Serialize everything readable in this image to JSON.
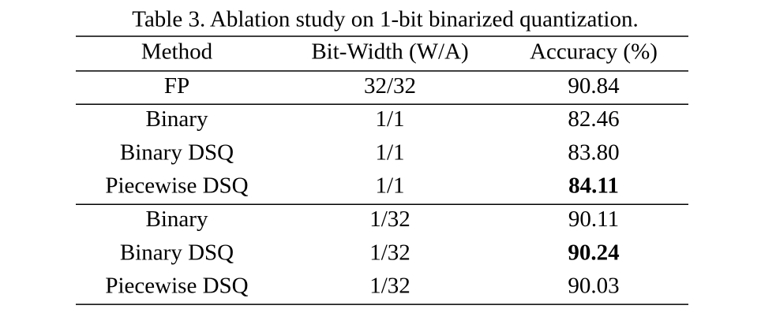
{
  "caption": "Table 3. Ablation study on 1-bit binarized quantization.",
  "table": {
    "header": [
      "Method",
      "Bit-Width (W/A)",
      "Accuracy (%)"
    ],
    "groups": [
      [
        [
          "FP",
          "32/32",
          "90.84"
        ]
      ],
      [
        [
          "Binary",
          "1/1",
          "82.46"
        ],
        [
          "Binary DSQ",
          "1/1",
          "83.80"
        ],
        [
          "Piecewise DSQ",
          "1/1",
          "84.11"
        ]
      ],
      [
        [
          "Binary",
          "1/32",
          "90.11"
        ],
        [
          "Binary DSQ",
          "1/32",
          "90.24"
        ],
        [
          "Piecewise DSQ",
          "1/32",
          "90.03"
        ]
      ]
    ],
    "bold": [
      [
        1,
        2,
        2
      ],
      [
        2,
        1,
        2
      ]
    ]
  }
}
